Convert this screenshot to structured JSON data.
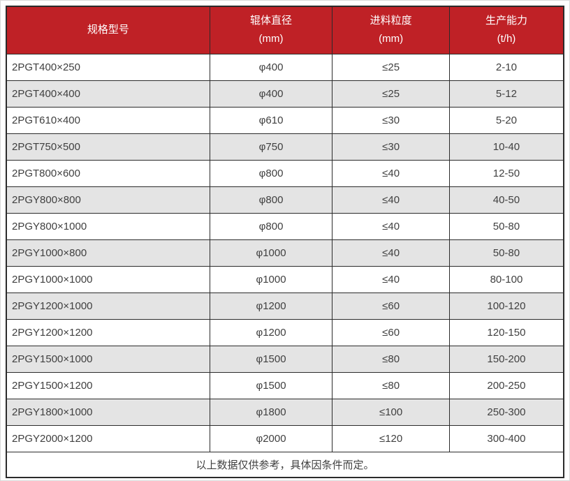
{
  "colors": {
    "header_bg": "#bf2126",
    "row_alt_bg": "#e4e4e4",
    "border": "#2b2b2b",
    "text": "#404040"
  },
  "table": {
    "headers": [
      {
        "title": "规格型号",
        "unit": ""
      },
      {
        "title": "辊体直径",
        "unit": "(mm)"
      },
      {
        "title": "进料粒度",
        "unit": "(mm)"
      },
      {
        "title": "生产能力",
        "unit": "(t/h)"
      }
    ],
    "rows": [
      {
        "model": "2PGT400×250",
        "diameter": "φ400",
        "feed": "≤25",
        "capacity": "2-10"
      },
      {
        "model": "2PGT400×400",
        "diameter": "φ400",
        "feed": "≤25",
        "capacity": "5-12"
      },
      {
        "model": "2PGT610×400",
        "diameter": "φ610",
        "feed": "≤30",
        "capacity": "5-20"
      },
      {
        "model": "2PGT750×500",
        "diameter": "φ750",
        "feed": "≤30",
        "capacity": "10-40"
      },
      {
        "model": "2PGT800×600",
        "diameter": "φ800",
        "feed": "≤40",
        "capacity": "12-50"
      },
      {
        "model": "2PGY800×800",
        "diameter": "φ800",
        "feed": "≤40",
        "capacity": "40-50"
      },
      {
        "model": "2PGY800×1000",
        "diameter": "φ800",
        "feed": "≤40",
        "capacity": "50-80"
      },
      {
        "model": "2PGY1000×800",
        "diameter": "φ1000",
        "feed": "≤40",
        "capacity": "50-80"
      },
      {
        "model": "2PGY1000×1000",
        "diameter": "φ1000",
        "feed": "≤40",
        "capacity": "80-100"
      },
      {
        "model": "2PGY1200×1000",
        "diameter": "φ1200",
        "feed": "≤60",
        "capacity": "100-120"
      },
      {
        "model": "2PGY1200×1200",
        "diameter": "φ1200",
        "feed": "≤60",
        "capacity": "120-150"
      },
      {
        "model": "2PGY1500×1000",
        "diameter": "φ1500",
        "feed": "≤80",
        "capacity": "150-200"
      },
      {
        "model": "2PGY1500×1200",
        "diameter": "φ1500",
        "feed": "≤80",
        "capacity": "200-250"
      },
      {
        "model": "2PGY1800×1000",
        "diameter": "φ1800",
        "feed": "≤100",
        "capacity": "250-300"
      },
      {
        "model": "2PGY2000×1200",
        "diameter": "φ2000",
        "feed": "≤120",
        "capacity": "300-400"
      }
    ],
    "footnote": "以上数据仅供参考，具体因条件而定。"
  }
}
